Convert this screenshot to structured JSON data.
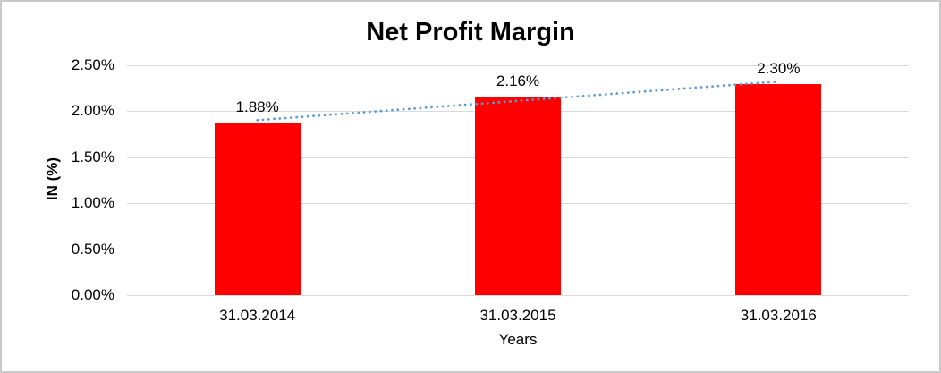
{
  "chart_data": {
    "type": "bar",
    "title": "Net Profit Margin",
    "categories": [
      "31.03.2014",
      "31.03.2015",
      "31.03.2016"
    ],
    "values": [
      1.88,
      2.16,
      2.3
    ],
    "data_labels": [
      "1.88%",
      "2.16%",
      "2.30%"
    ],
    "xlabel": "Years",
    "ylabel": "IN (%)",
    "ylim": [
      0,
      2.5
    ],
    "ytick_step": 0.5,
    "ytick_labels": [
      "0.00%",
      "0.50%",
      "1.00%",
      "1.50%",
      "2.00%",
      "2.50%"
    ],
    "grid": true,
    "legend": "none",
    "bar_color": "#FF0000",
    "gridline_color": "#D9D9D9",
    "text_color": "#000000",
    "border_color": "#C9C9C9",
    "trendline": {
      "type": "linear",
      "style": "dotted",
      "color": "#5B9BD5"
    }
  }
}
